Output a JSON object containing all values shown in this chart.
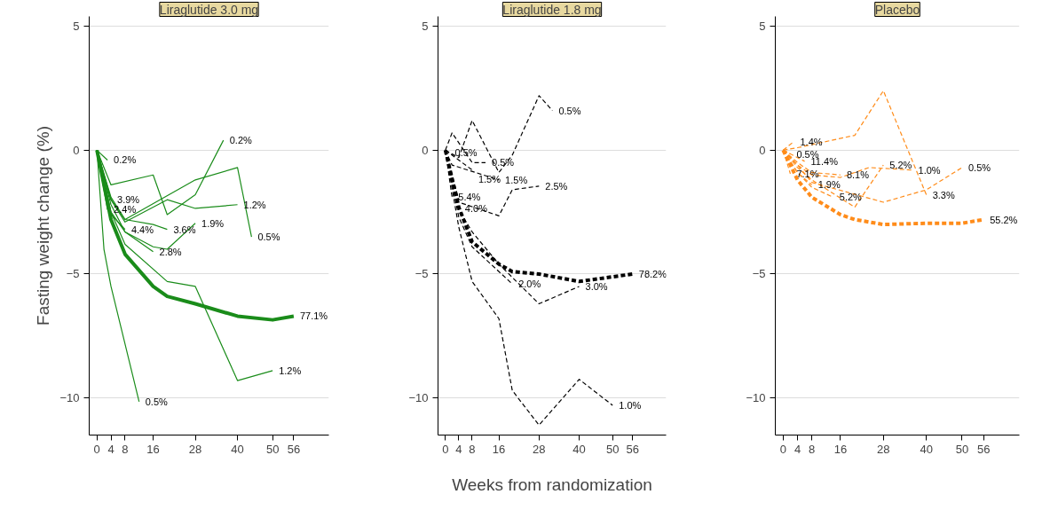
{
  "chart_data": [
    {
      "type": "line",
      "title": "Liraglutide 3.0 mg",
      "ylabel": "Fasting weight change (%)",
      "xlim": [
        -2.2,
        66
      ],
      "ylim": [
        -11.5,
        5.4
      ],
      "xticks": [
        0,
        4,
        8,
        16,
        28,
        40,
        50,
        56
      ],
      "yticks": [
        -10,
        -5,
        0,
        5
      ],
      "grid": "y",
      "line_style": "solid",
      "legend": false,
      "series": [
        {
          "name": "77.1%",
          "color": "#1a8c1a",
          "x": [
            0,
            4,
            8,
            16,
            20,
            28,
            40,
            50,
            56
          ],
          "values": [
            0,
            -2.8,
            -4.2,
            -5.5,
            -5.9,
            -6.2,
            -6.7,
            -6.85,
            -6.7
          ]
        },
        {
          "name": "0.5%",
          "color": "#1a8c1a",
          "x": [
            0,
            2,
            4,
            12
          ],
          "values": [
            0,
            -4.0,
            -5.5,
            -10.15
          ]
        },
        {
          "name": "1.2%",
          "color": "#1a8c1a",
          "x": [
            0,
            4,
            8,
            20,
            28,
            40,
            50
          ],
          "values": [
            0,
            -2.5,
            -3.8,
            -5.3,
            -5.5,
            -9.3,
            -8.9
          ]
        },
        {
          "name": "0.2%",
          "color": "#1a8c1a",
          "x": [
            0,
            4,
            16,
            20,
            28,
            36
          ],
          "values": [
            0,
            -1.4,
            -1.0,
            -2.6,
            -1.8,
            0.4
          ]
        },
        {
          "name": "1.2%",
          "color": "#1a8c1a",
          "x": [
            0,
            4,
            8,
            20,
            28,
            40
          ],
          "values": [
            0,
            -2.0,
            -2.9,
            -2.0,
            -2.35,
            -2.2
          ]
        },
        {
          "name": "0.5%",
          "color": "#1a8c1a",
          "x": [
            0,
            4,
            8,
            28,
            40,
            44
          ],
          "values": [
            0,
            -1.9,
            -2.8,
            -1.2,
            -0.7,
            -3.5
          ]
        },
        {
          "name": "1.9%",
          "color": "#1a8c1a",
          "x": [
            0,
            4,
            8,
            16,
            20,
            28
          ],
          "values": [
            0,
            -2.2,
            -3.3,
            -3.9,
            -4.0,
            -2.95
          ]
        },
        {
          "name": "2.8%",
          "color": "#1a8c1a",
          "x": [
            0,
            4,
            8,
            16
          ],
          "values": [
            0,
            -2.5,
            -3.3,
            -4.1
          ]
        },
        {
          "name": "3.6%",
          "color": "#1a8c1a",
          "x": [
            0,
            4,
            8,
            16,
            20
          ],
          "values": [
            0,
            -2.0,
            -2.8,
            -3.0,
            -3.2
          ]
        },
        {
          "name": "4.4%",
          "color": "#1a8c1a",
          "x": [
            0,
            2,
            4,
            8
          ],
          "values": [
            0,
            -1.5,
            -2.6,
            -3.2
          ]
        },
        {
          "name": "3.9%",
          "color": "#1a8c1a",
          "x": [
            0,
            2,
            4
          ],
          "values": [
            0,
            -1.2,
            -2.0
          ]
        },
        {
          "name": "2.4%",
          "color": "#1a8c1a",
          "x": [
            0,
            3
          ],
          "values": [
            0,
            -2.4
          ]
        },
        {
          "name": "0.2%",
          "color": "#1a8c1a",
          "x": [
            0,
            3
          ],
          "values": [
            0,
            -0.4
          ]
        }
      ]
    },
    {
      "type": "line",
      "title": "Liraglutide 1.8 mg",
      "xlabel": "Weeks from randomization",
      "xlim": [
        -2.2,
        66
      ],
      "ylim": [
        -11.5,
        5.4
      ],
      "xticks": [
        0,
        4,
        8,
        16,
        28,
        40,
        50,
        56
      ],
      "yticks": [
        -10,
        -5,
        0,
        5
      ],
      "grid": "y",
      "line_style": "dashed",
      "legend": false,
      "series": [
        {
          "name": "78.2%",
          "color": "#000000",
          "x": [
            0,
            4,
            8,
            16,
            20,
            28,
            40,
            56
          ],
          "values": [
            0,
            -2.3,
            -3.7,
            -4.6,
            -4.9,
            -5.0,
            -5.3,
            -5.0
          ]
        },
        {
          "name": "1.0%",
          "color": "#000000",
          "x": [
            0,
            4,
            8,
            16,
            20,
            28,
            40,
            50
          ],
          "values": [
            0,
            -3.1,
            -5.3,
            -6.8,
            -9.7,
            -11.1,
            -9.25,
            -10.3
          ]
        },
        {
          "name": "3.0%",
          "color": "#000000",
          "x": [
            0,
            4,
            8,
            16,
            28,
            40
          ],
          "values": [
            0,
            -2.4,
            -3.3,
            -4.6,
            -6.2,
            -5.5
          ]
        },
        {
          "name": "2.0%",
          "color": "#000000",
          "x": [
            0,
            4,
            8,
            20
          ],
          "values": [
            0,
            -2.7,
            -3.9,
            -5.4
          ]
        },
        {
          "name": "2.5%",
          "color": "#000000",
          "x": [
            0,
            4,
            16,
            20,
            28
          ],
          "values": [
            0,
            -2.1,
            -2.65,
            -1.6,
            -1.45
          ]
        },
        {
          "name": "0.5%",
          "color": "#000000",
          "x": [
            0,
            4,
            8,
            16,
            20,
            28,
            32
          ],
          "values": [
            0,
            -0.3,
            1.2,
            -0.9,
            -0.2,
            2.2,
            1.6
          ]
        },
        {
          "name": "0.5%",
          "color": "#000000",
          "x": [
            0,
            2,
            8,
            12
          ],
          "values": [
            0,
            0.7,
            -0.5,
            -0.5
          ]
        },
        {
          "name": "1.5%",
          "color": "#000000",
          "x": [
            0,
            2,
            16
          ],
          "values": [
            0,
            -0.6,
            -1.2
          ]
        },
        {
          "name": "1.5%",
          "color": "#000000",
          "x": [
            0,
            4,
            8
          ],
          "values": [
            0,
            -0.4,
            -0.8
          ]
        },
        {
          "name": "5.4%",
          "color": "#000000",
          "x": [
            0,
            2
          ],
          "values": [
            0,
            -1.9
          ]
        },
        {
          "name": "4.0%",
          "color": "#000000",
          "x": [
            0,
            4
          ],
          "values": [
            0,
            -2.0
          ]
        },
        {
          "name": "0.5%",
          "color": "#000000",
          "x": [
            0,
            1
          ],
          "values": [
            0,
            -0.1
          ]
        }
      ]
    },
    {
      "type": "line",
      "title": "Placebo",
      "xlim": [
        -2.2,
        66
      ],
      "ylim": [
        -11.5,
        5.4
      ],
      "xticks": [
        0,
        4,
        8,
        16,
        28,
        40,
        50,
        56
      ],
      "yticks": [
        -10,
        -5,
        0,
        5
      ],
      "grid": "y",
      "line_style": "dashed",
      "legend": false,
      "series": [
        {
          "name": "55.2%",
          "color": "#ff8c1a",
          "x": [
            0,
            4,
            8,
            16,
            20,
            28,
            40,
            50,
            56
          ],
          "values": [
            0,
            -1.2,
            -1.9,
            -2.6,
            -2.8,
            -3.0,
            -2.95,
            -2.95,
            -2.8
          ]
        },
        {
          "name": "3.3%",
          "color": "#ff8c1a",
          "x": [
            0,
            4,
            20,
            28,
            40
          ],
          "values": [
            0,
            0.1,
            0.6,
            2.4,
            -1.8
          ]
        },
        {
          "name": "0.5%",
          "color": "#ff8c1a",
          "x": [
            0,
            4,
            8,
            28,
            40,
            50
          ],
          "values": [
            0,
            -0.6,
            -1.3,
            -2.1,
            -1.6,
            -0.7
          ]
        },
        {
          "name": "1.0%",
          "color": "#ff8c1a",
          "x": [
            0,
            4,
            8,
            16,
            24,
            36
          ],
          "values": [
            0,
            -0.6,
            -1.0,
            -1.1,
            -0.7,
            -0.8
          ]
        },
        {
          "name": "5.2%",
          "color": "#ff8c1a",
          "x": [
            0,
            4,
            8,
            20,
            28
          ],
          "values": [
            0,
            -0.7,
            -1.2,
            -2.3,
            -0.6
          ]
        },
        {
          "name": "8.1%",
          "color": "#ff8c1a",
          "x": [
            0,
            4,
            8,
            16
          ],
          "values": [
            0,
            -0.5,
            -0.9,
            -1.0
          ]
        },
        {
          "name": "5.2%",
          "color": "#ff8c1a",
          "x": [
            0,
            4,
            8,
            14
          ],
          "values": [
            0,
            -0.9,
            -1.5,
            -1.9
          ]
        },
        {
          "name": "1.9%",
          "color": "#ff8c1a",
          "x": [
            0,
            4,
            8
          ],
          "values": [
            0,
            -0.9,
            -1.4
          ]
        },
        {
          "name": "11.4%",
          "color": "#ff8c1a",
          "x": [
            0,
            6
          ],
          "values": [
            0,
            -0.45
          ]
        },
        {
          "name": "7.1%",
          "color": "#ff8c1a",
          "x": [
            0,
            2
          ],
          "values": [
            0,
            -0.95
          ]
        },
        {
          "name": "1.4%",
          "color": "#ff8c1a",
          "x": [
            0,
            3
          ],
          "values": [
            0,
            0.35
          ]
        },
        {
          "name": "0.5%",
          "color": "#ff8c1a",
          "x": [
            0,
            2
          ],
          "values": [
            0,
            -0.15
          ]
        }
      ]
    }
  ]
}
